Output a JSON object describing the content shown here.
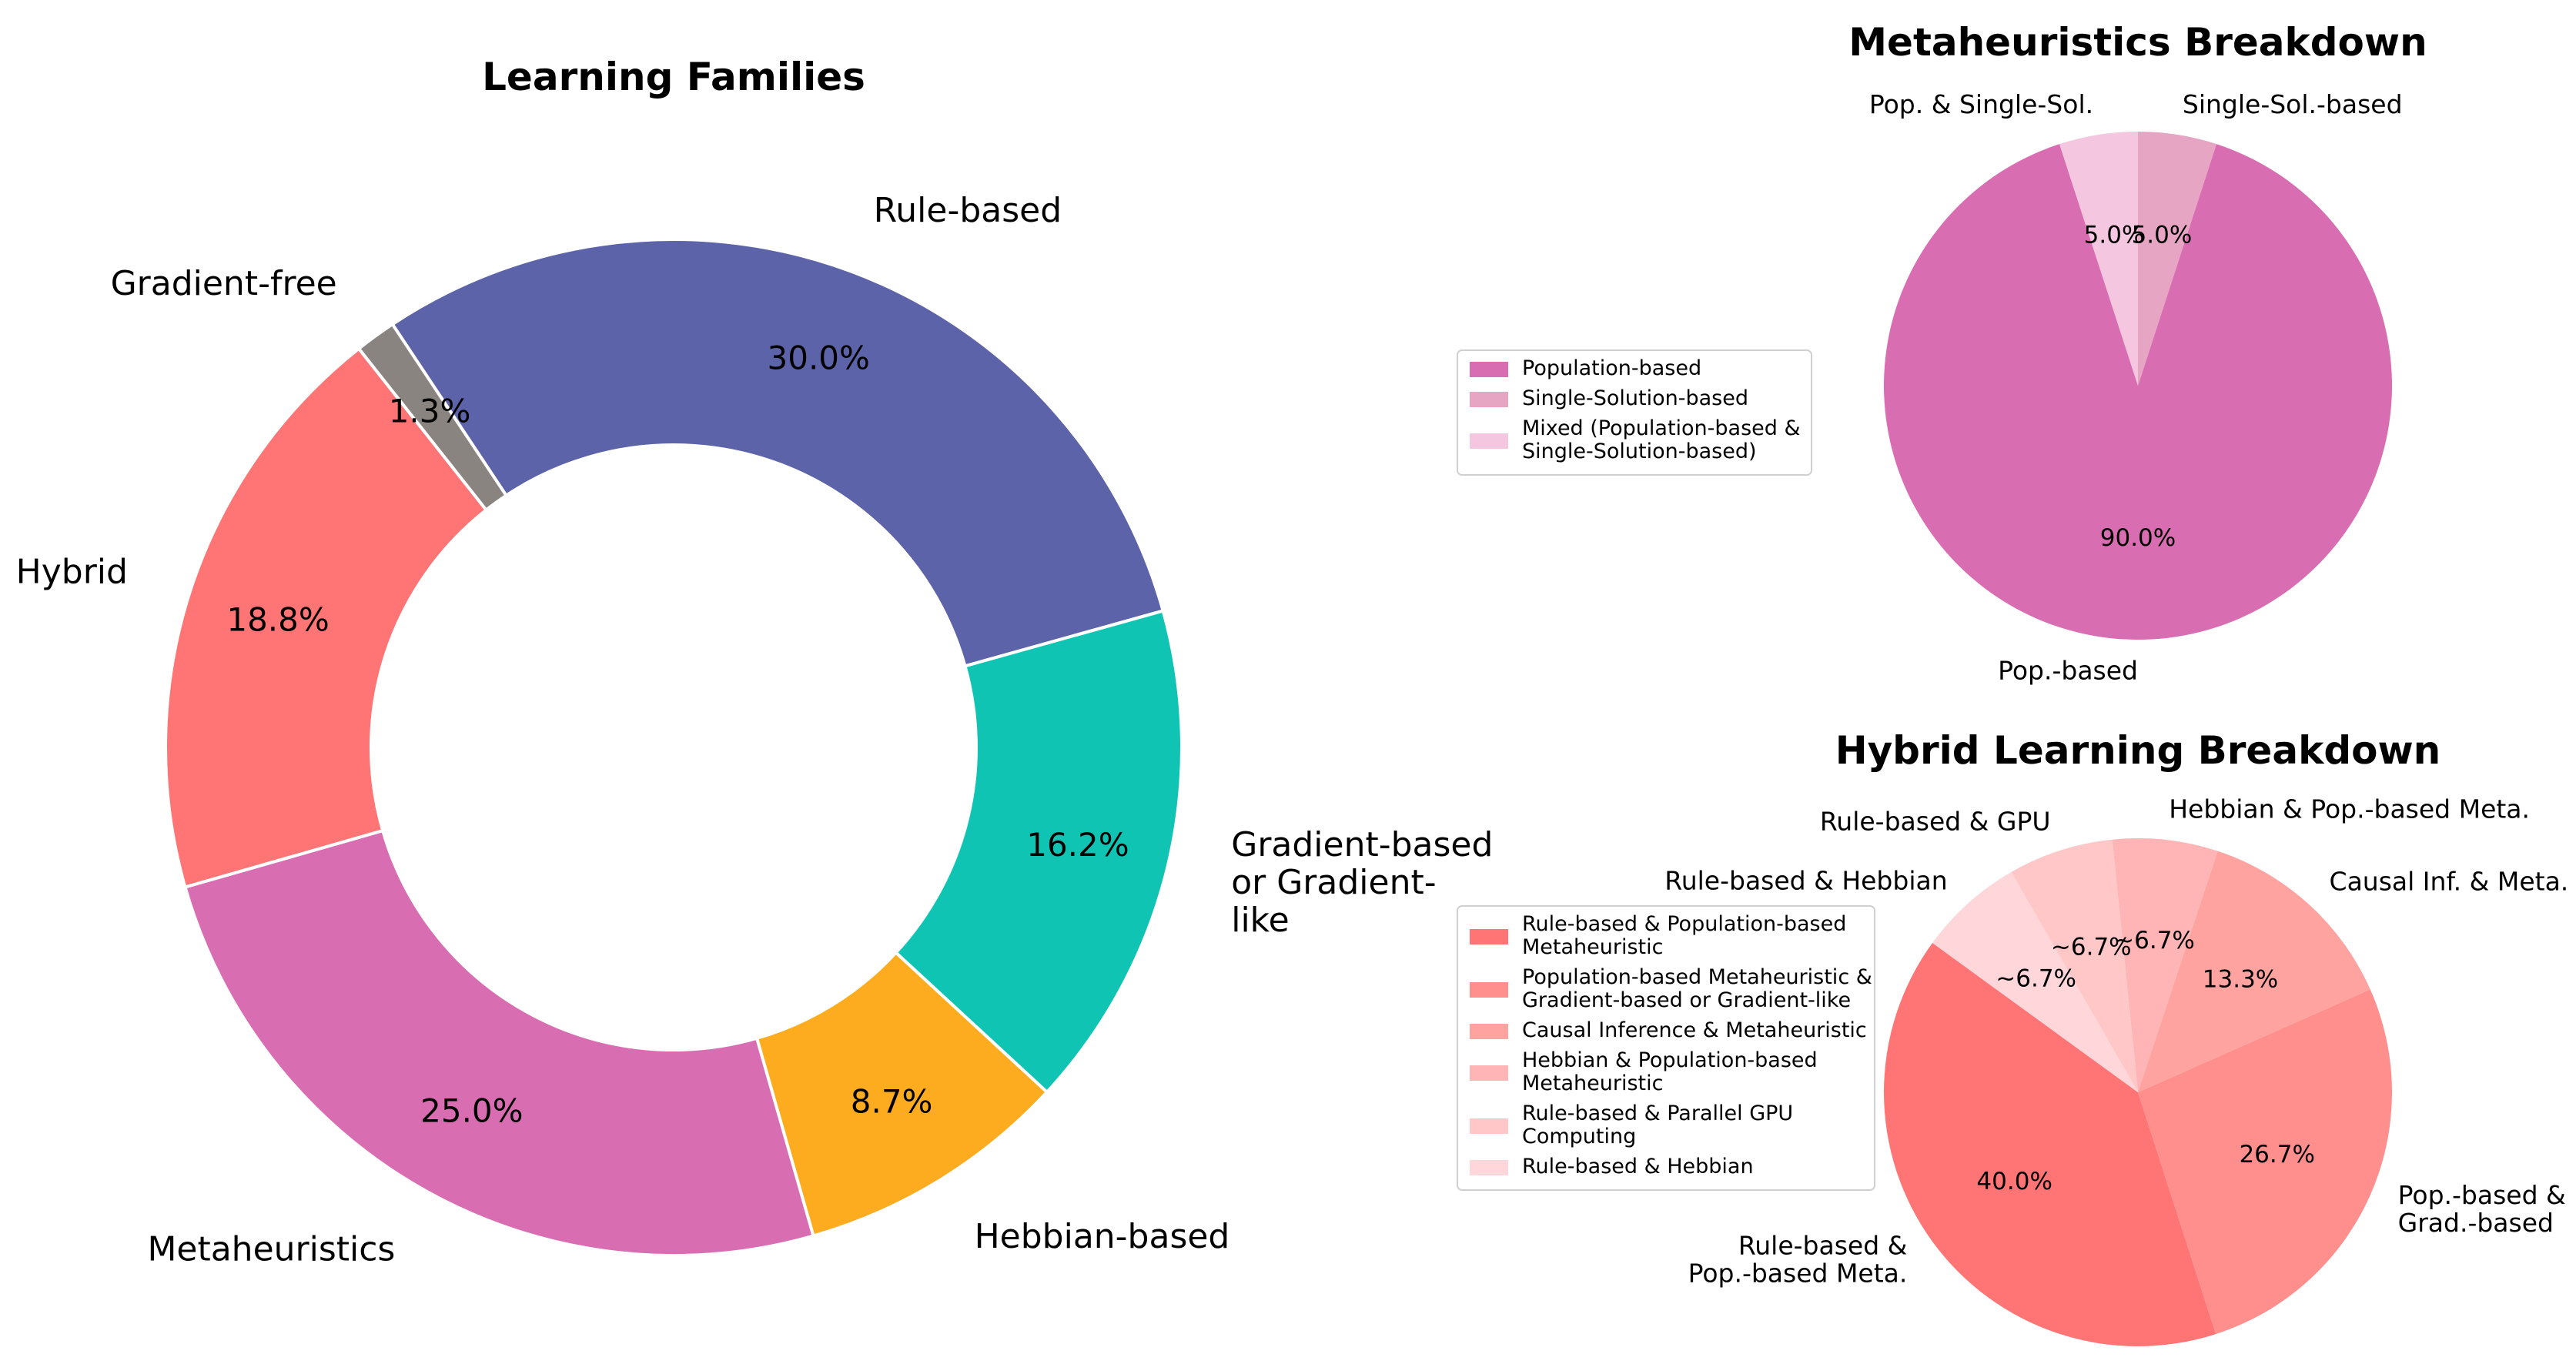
{
  "chart_data": [
    {
      "id": "families",
      "type": "donut",
      "title": "Learning Families",
      "categories": [
        "Rule-based",
        "Gradient-based or Gradient-like",
        "Hebbian-based",
        "Metaheuristics",
        "Hybrid",
        "Gradient-free"
      ],
      "values": [
        30.0,
        16.2,
        8.7,
        25.0,
        18.8,
        1.3
      ],
      "pct_labels": [
        "30.0%",
        "16.2%",
        "8.7%",
        "25.0%",
        "18.8%",
        "1.3%"
      ],
      "outer_labels": [
        [
          "Rule-based"
        ],
        [
          "Gradient-based",
          "or Gradient-",
          "like"
        ],
        [
          "Hebbian-based"
        ],
        [
          "Metaheuristics"
        ],
        [
          "Hybrid"
        ],
        [
          "Gradient-free"
        ]
      ],
      "colors": [
        "#5c63a8",
        "#10c4b4",
        "#fdac1f",
        "#d96db1",
        "#ff7474",
        "#898480"
      ],
      "start_angle_deg": 123.6,
      "direction": "clockwise",
      "legend": "none"
    },
    {
      "id": "meta",
      "type": "pie",
      "title": "Metaheuristics Breakdown",
      "categories": [
        "Population-based",
        "Single-Solution-based",
        "Mixed (Population-based & Single-Solution-based)"
      ],
      "values": [
        90.0,
        5.0,
        5.0
      ],
      "pct_labels": [
        "90.0%",
        "5.0%",
        "5.0%"
      ],
      "outer_labels": [
        [
          "Pop.-based"
        ],
        [
          "Single-Sol.-based"
        ],
        [
          "Pop. & Single-Sol."
        ]
      ],
      "colors": [
        "#d96db1",
        "#e6a5c3",
        "#f5c6df"
      ],
      "start_angle_deg": 108,
      "direction": "counterclockwise",
      "legend": "left",
      "legend_entries": [
        [
          "Population-based"
        ],
        [
          "Single-Solution-based"
        ],
        [
          "Mixed (Population-based &",
          "Single-Solution-based)"
        ]
      ]
    },
    {
      "id": "hybrid",
      "type": "pie",
      "title": "Hybrid Learning Breakdown",
      "categories": [
        "Rule-based & Population-based Metaheuristic",
        "Population-based Metaheuristic & Gradient-based or Gradient-like",
        "Causal Inference & Metaheuristic",
        "Hebbian & Population-based Metaheuristic",
        "Rule-based & Parallel GPU Computing",
        "Rule-based & Hebbian"
      ],
      "values": [
        40.0,
        26.7,
        13.3,
        6.7,
        6.7,
        6.7
      ],
      "pct_labels": [
        "40.0%",
        "26.7%",
        "13.3%",
        "~6.7%",
        "~6.7%",
        "~6.7%"
      ],
      "outer_labels": [
        [
          "Rule-based &",
          "Pop.-based Meta."
        ],
        [
          "Pop.-based &",
          "Grad.-based"
        ],
        [
          "Causal Inf. & Meta."
        ],
        [
          "Hebbian & Pop.-based Meta."
        ],
        [
          "Rule-based & GPU"
        ],
        [
          "Rule-based & Hebbian"
        ]
      ],
      "colors": [
        "#ff7474",
        "#ff8f8c",
        "#ffa3a1",
        "#ffb5b6",
        "#ffc7c8",
        "#ffd6d9"
      ],
      "start_angle_deg": 144,
      "direction": "counterclockwise",
      "legend": "left",
      "legend_entries": [
        [
          "Rule-based & Population-based",
          "Metaheuristic"
        ],
        [
          "Population-based Metaheuristic &",
          "Gradient-based or Gradient-like"
        ],
        [
          "Causal Inference & Metaheuristic"
        ],
        [
          "Hebbian & Population-based",
          "Metaheuristic"
        ],
        [
          "Rule-based & Parallel GPU",
          "Computing"
        ],
        [
          "Rule-based & Hebbian"
        ]
      ]
    }
  ]
}
